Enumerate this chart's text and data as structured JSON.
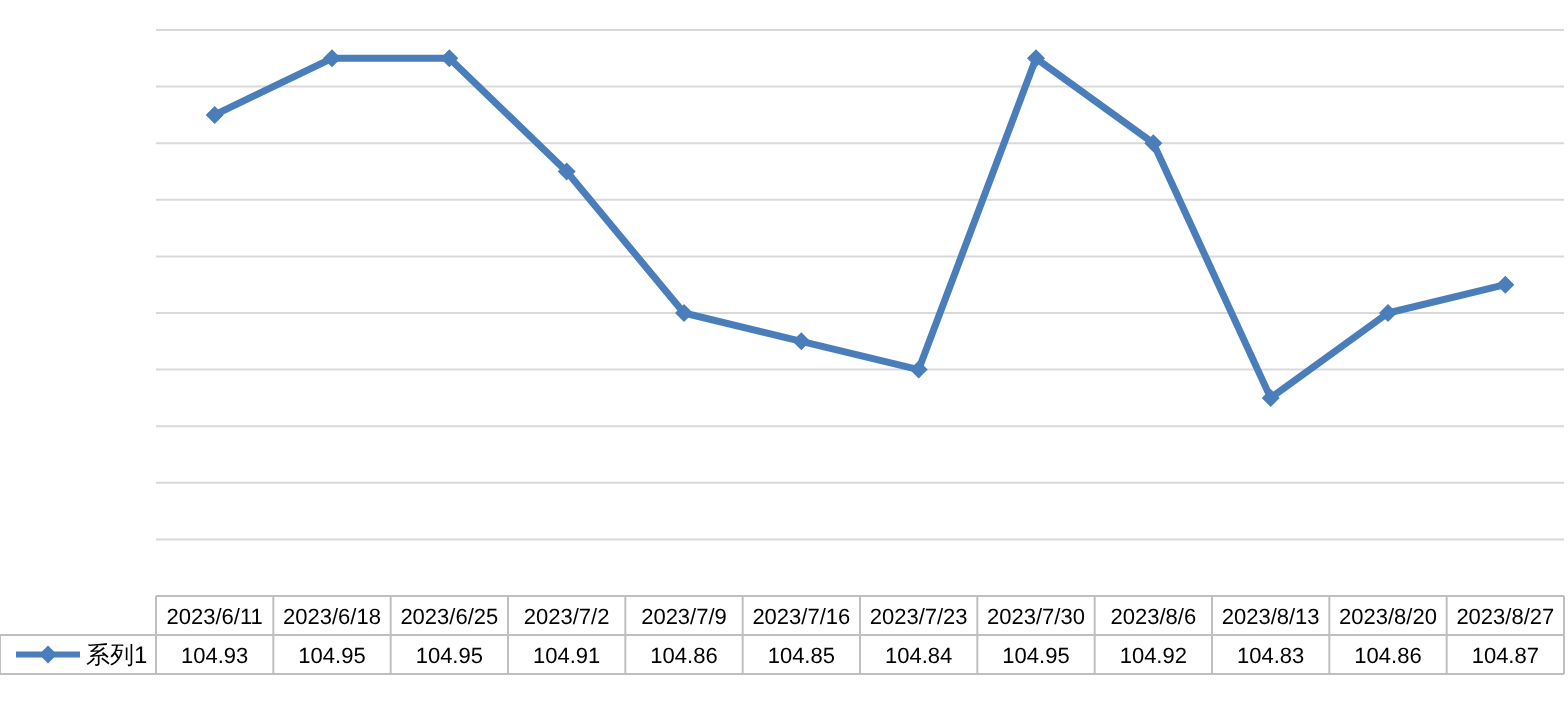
{
  "chart_data": {
    "type": "line",
    "categories": [
      "2023/6/11",
      "2023/6/18",
      "2023/6/25",
      "2023/7/2",
      "2023/7/9",
      "2023/7/16",
      "2023/7/23",
      "2023/7/30",
      "2023/8/6",
      "2023/8/13",
      "2023/8/20",
      "2023/8/27"
    ],
    "series": [
      {
        "name": "系列1",
        "color": "#4a7ebb",
        "values": [
          104.93,
          104.95,
          104.95,
          104.91,
          104.86,
          104.85,
          104.84,
          104.95,
          104.92,
          104.83,
          104.86,
          104.87
        ]
      }
    ],
    "ylim": [
      104.76,
      104.96
    ],
    "yticks": [
      {
        "value": 104.76,
        "label": null
      },
      {
        "value": 104.78,
        "label": null
      },
      {
        "value": 104.8,
        "label": null
      },
      {
        "value": 104.82,
        "label": null
      },
      {
        "value": 104.84,
        "label": null
      },
      {
        "value": 104.86,
        "label": null
      },
      {
        "value": 104.88,
        "label": null
      },
      {
        "value": 104.9,
        "label": null
      },
      {
        "value": 104.92,
        "label": null
      },
      {
        "value": 104.94,
        "label": null
      },
      {
        "value": 104.96,
        "label": null
      }
    ],
    "grid": "y",
    "tick_labels": "x",
    "marker": "diamond",
    "line_style": "solid",
    "data_labels": true,
    "legend": "bottom"
  }
}
